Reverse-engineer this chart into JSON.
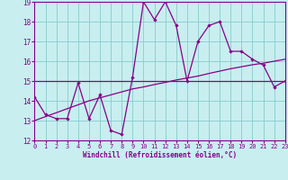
{
  "xlabel": "Windchill (Refroidissement éolien,°C)",
  "x": [
    0,
    1,
    2,
    3,
    4,
    5,
    6,
    7,
    8,
    9,
    10,
    11,
    12,
    13,
    14,
    15,
    16,
    17,
    18,
    19,
    20,
    21,
    22,
    23
  ],
  "y_main": [
    14.2,
    13.3,
    13.1,
    13.1,
    14.9,
    13.1,
    14.3,
    12.5,
    12.3,
    15.2,
    19.0,
    18.1,
    19.0,
    17.8,
    15.0,
    17.0,
    17.8,
    18.0,
    16.5,
    16.5,
    16.1,
    15.8,
    14.7,
    15.0
  ],
  "y_flat": [
    15.0,
    15.0,
    15.0,
    15.0,
    15.0,
    15.0,
    15.0,
    15.0,
    15.0,
    15.0,
    15.0,
    15.0,
    15.0,
    15.0,
    15.0,
    15.0,
    15.0,
    15.0,
    15.0,
    15.0,
    15.0,
    15.0,
    15.0,
    15.0
  ],
  "y_slope": [
    13.0,
    13.2,
    13.4,
    13.6,
    13.8,
    14.0,
    14.15,
    14.3,
    14.45,
    14.6,
    14.7,
    14.82,
    14.93,
    15.05,
    15.15,
    15.25,
    15.38,
    15.5,
    15.62,
    15.72,
    15.82,
    15.9,
    16.0,
    16.1
  ],
  "line_color": "#880088",
  "bg_color": "#c8eef0",
  "grid_color": "#aadddd",
  "xlim": [
    0,
    23
  ],
  "ylim": [
    12,
    19
  ],
  "yticks": [
    12,
    13,
    14,
    15,
    16,
    17,
    18,
    19
  ],
  "xticks": [
    0,
    1,
    2,
    3,
    4,
    5,
    6,
    7,
    8,
    9,
    10,
    11,
    12,
    13,
    14,
    15,
    16,
    17,
    18,
    19,
    20,
    21,
    22,
    23
  ],
  "tick_fontsize": 5.0,
  "xlabel_fontsize": 5.5
}
